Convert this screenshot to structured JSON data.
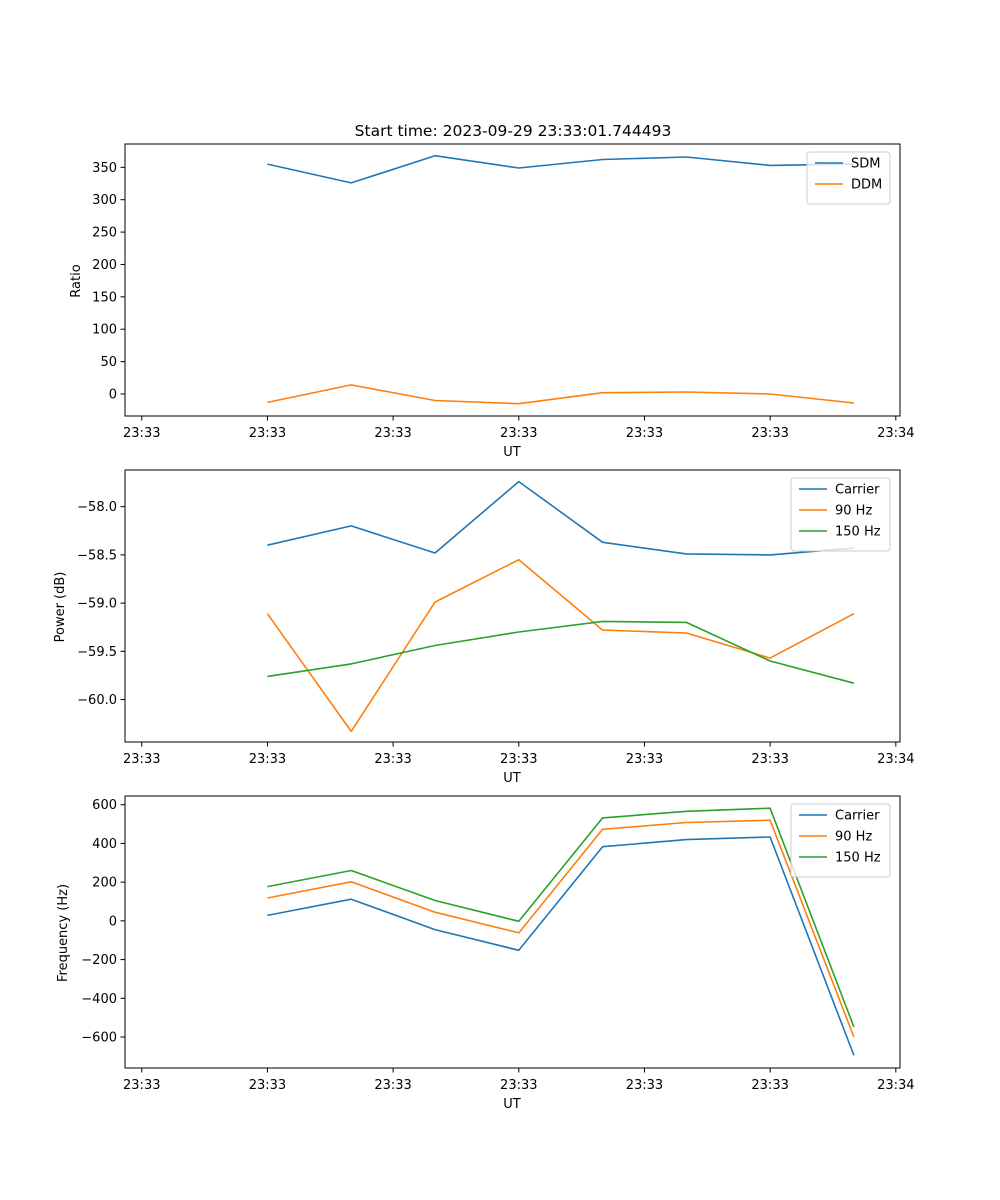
{
  "chart_data": [
    {
      "type": "line",
      "title": "Start time: 2023-09-29 23:33:01.744493",
      "xlabel": "UT",
      "ylabel": "Ratio",
      "x": [
        1,
        2,
        3,
        4,
        5,
        6,
        7,
        8
      ],
      "xlim": [
        -0.7,
        8.55
      ],
      "xticks": [
        -0.5,
        1.0,
        2.5,
        4.0,
        5.5,
        7.0,
        8.5
      ],
      "xtick_labels": [
        "23:33",
        "23:33",
        "23:33",
        "23:33",
        "23:33",
        "23:33",
        "23:34"
      ],
      "ylim": [
        -34,
        386
      ],
      "yticks": [
        0,
        50,
        100,
        150,
        200,
        250,
        300,
        350
      ],
      "ytick_labels": [
        "0",
        "50",
        "100",
        "150",
        "200",
        "250",
        "300",
        "350"
      ],
      "legend": "top-right",
      "series": [
        {
          "name": "SDM",
          "color": "#1f77b4",
          "values": [
            355,
            326,
            368,
            349,
            362,
            366,
            353,
            355
          ]
        },
        {
          "name": "DDM",
          "color": "#ff7f0e",
          "values": [
            -13,
            14,
            -10,
            -15,
            2,
            3,
            0,
            -14
          ]
        }
      ]
    },
    {
      "type": "line",
      "title": "",
      "xlabel": "UT",
      "ylabel": "Power (dB)",
      "x": [
        1,
        2,
        3,
        4,
        5,
        6,
        7,
        8
      ],
      "xlim": [
        -0.7,
        8.55
      ],
      "xticks": [
        -0.5,
        1.0,
        2.5,
        4.0,
        5.5,
        7.0,
        8.5
      ],
      "xtick_labels": [
        "23:33",
        "23:33",
        "23:33",
        "23:33",
        "23:33",
        "23:33",
        "23:34"
      ],
      "ylim": [
        -60.44,
        -57.62
      ],
      "yticks": [
        -60.0,
        -59.5,
        -59.0,
        -58.5,
        -58.0
      ],
      "ytick_labels": [
        "−60.0",
        "−59.5",
        "−59.0",
        "−58.5",
        "−58.0"
      ],
      "legend": "top-right",
      "series": [
        {
          "name": "Carrier",
          "color": "#1f77b4",
          "values": [
            -58.4,
            -58.2,
            -58.48,
            -57.74,
            -58.37,
            -58.49,
            -58.5,
            -58.43
          ]
        },
        {
          "name": "90 Hz",
          "color": "#ff7f0e",
          "values": [
            -59.11,
            -60.33,
            -58.99,
            -58.55,
            -59.28,
            -59.31,
            -59.57,
            -59.11
          ]
        },
        {
          "name": "150 Hz",
          "color": "#2ca02c",
          "values": [
            -59.76,
            -59.63,
            -59.44,
            -59.3,
            -59.19,
            -59.2,
            -59.6,
            -59.83
          ]
        }
      ]
    },
    {
      "type": "line",
      "title": "",
      "xlabel": "UT",
      "ylabel": "Frequency (Hz)",
      "x": [
        1,
        2,
        3,
        4,
        5,
        6,
        7,
        8
      ],
      "xlim": [
        -0.7,
        8.55
      ],
      "xticks": [
        -0.5,
        1.0,
        2.5,
        4.0,
        5.5,
        7.0,
        8.5
      ],
      "xtick_labels": [
        "23:33",
        "23:33",
        "23:33",
        "23:33",
        "23:33",
        "23:33",
        "23:34"
      ],
      "ylim": [
        -760,
        645
      ],
      "yticks": [
        -600,
        -400,
        -200,
        0,
        200,
        400,
        600
      ],
      "ytick_labels": [
        "−600",
        "−400",
        "−200",
        "0",
        "200",
        "400",
        "600"
      ],
      "legend": "top-right",
      "series": [
        {
          "name": "Carrier",
          "color": "#1f77b4",
          "values": [
            28,
            112,
            -45,
            -152,
            383,
            420,
            433,
            -695
          ]
        },
        {
          "name": "90 Hz",
          "color": "#ff7f0e",
          "values": [
            118,
            202,
            45,
            -62,
            473,
            508,
            520,
            -600
          ]
        },
        {
          "name": "150 Hz",
          "color": "#2ca02c",
          "values": [
            177,
            260,
            105,
            -2,
            532,
            566,
            582,
            -548
          ]
        }
      ]
    }
  ]
}
